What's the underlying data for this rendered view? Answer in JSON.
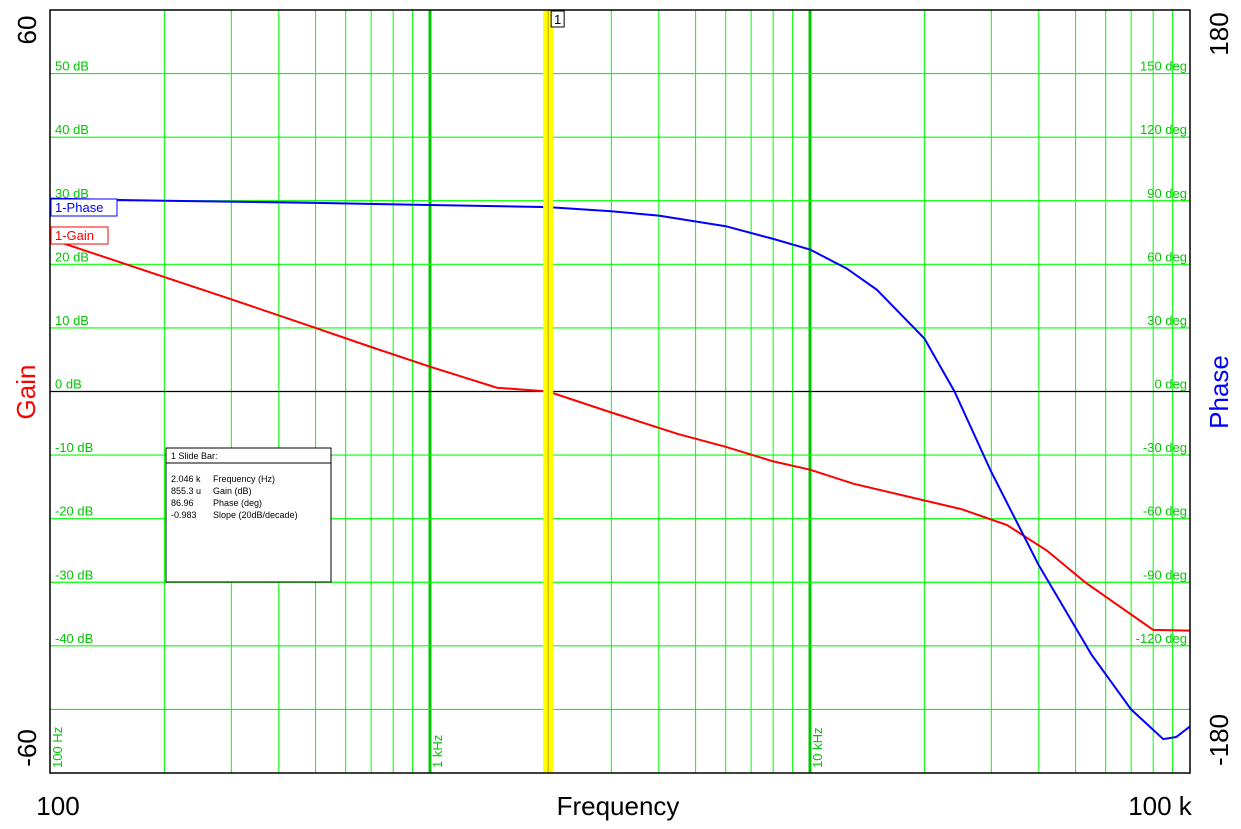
{
  "chart_data": {
    "type": "line",
    "xlabel": "Frequency",
    "x_scale": "log",
    "xlim": [
      100,
      100000
    ],
    "x_end_labels": [
      "100",
      "100 k"
    ],
    "x_decade_labels": [
      {
        "x": 100,
        "text": "100 Hz"
      },
      {
        "x": 1000,
        "text": "1 kHz"
      },
      {
        "x": 10000,
        "text": "10 kHz"
      }
    ],
    "left_axis": {
      "label": "Gain",
      "color": "#ff0000",
      "ylim": [
        -60,
        60
      ],
      "end_labels": [
        "60",
        "-60"
      ],
      "tick_labels": [
        {
          "v": 50,
          "text": "50 dB"
        },
        {
          "v": 40,
          "text": "40 dB"
        },
        {
          "v": 30,
          "text": "30 dB"
        },
        {
          "v": 20,
          "text": "20 dB"
        },
        {
          "v": 10,
          "text": "10 dB"
        },
        {
          "v": 0,
          "text": "0 dB"
        },
        {
          "v": -10,
          "text": "-10 dB"
        },
        {
          "v": -20,
          "text": "-20 dB"
        },
        {
          "v": -30,
          "text": "-30 dB"
        },
        {
          "v": -40,
          "text": "-40 dB"
        }
      ]
    },
    "right_axis": {
      "label": "Phase",
      "color": "#0000ff",
      "ylim": [
        -180,
        180
      ],
      "end_labels": [
        "180",
        "-180"
      ],
      "tick_labels": [
        {
          "v": 150,
          "text": "150 deg"
        },
        {
          "v": 120,
          "text": "120 deg"
        },
        {
          "v": 90,
          "text": "90 deg"
        },
        {
          "v": 60,
          "text": "60 deg"
        },
        {
          "v": 30,
          "text": "30 deg"
        },
        {
          "v": 0,
          "text": "0 deg"
        },
        {
          "v": -30,
          "text": "-30 deg"
        },
        {
          "v": -60,
          "text": "-60 deg"
        },
        {
          "v": -90,
          "text": "-90 deg"
        },
        {
          "v": -120,
          "text": "-120 deg"
        }
      ]
    },
    "grid": true,
    "series": [
      {
        "name": "1-Gain",
        "axis": "left",
        "color": "#ff0000",
        "x": [
          100,
          150,
          200,
          300,
          500,
          700,
          1000,
          1500,
          2046,
          3000,
          4500,
          6000,
          8000,
          10000,
          13000,
          18000,
          25000,
          33000,
          42000,
          53000,
          66000,
          80000,
          100000
        ],
        "y": [
          24,
          20.5,
          18,
          14.5,
          10,
          7,
          3.9,
          0.6,
          0,
          -3.3,
          -6.7,
          -8.7,
          -11,
          -12.3,
          -14.5,
          -16.5,
          -18.5,
          -21,
          -25,
          -30,
          -34,
          -37.5,
          -37.6
        ]
      },
      {
        "name": "1-Phase",
        "axis": "right",
        "color": "#0000ff",
        "x": [
          100,
          200,
          500,
          1000,
          2046,
          3000,
          4000,
          6000,
          8000,
          10000,
          12500,
          15000,
          20000,
          24000,
          30000,
          40000,
          55000,
          70000,
          85000,
          92000,
          100000
        ],
        "y": [
          91,
          90,
          89,
          88,
          87,
          85,
          83,
          78,
          72,
          67,
          58,
          48,
          25,
          0,
          -38,
          -82,
          -124,
          -150,
          -164,
          -163,
          -158
        ]
      }
    ],
    "cursor": {
      "x": 2046,
      "label": "1",
      "color": "#ffff00"
    },
    "legend": [
      {
        "text": "1-Phase",
        "color": "#0000ff"
      },
      {
        "text": "1-Gain",
        "color": "#ff0000"
      }
    ],
    "readout": {
      "title": "1  Slide Bar:",
      "rows": [
        {
          "value": "2.046 k",
          "label": "Frequency (Hz)"
        },
        {
          "value": "855.3 u",
          "label": "Gain (dB)"
        },
        {
          "value": "86.96",
          "label": "Phase (deg)"
        },
        {
          "value": "-0.983",
          "label": "Slope (20dB/decade)"
        }
      ]
    },
    "colors": {
      "grid": "#00ff00",
      "grid_major": "#00c800",
      "zero_line": "#000000",
      "tick_text": "#00c800"
    }
  }
}
